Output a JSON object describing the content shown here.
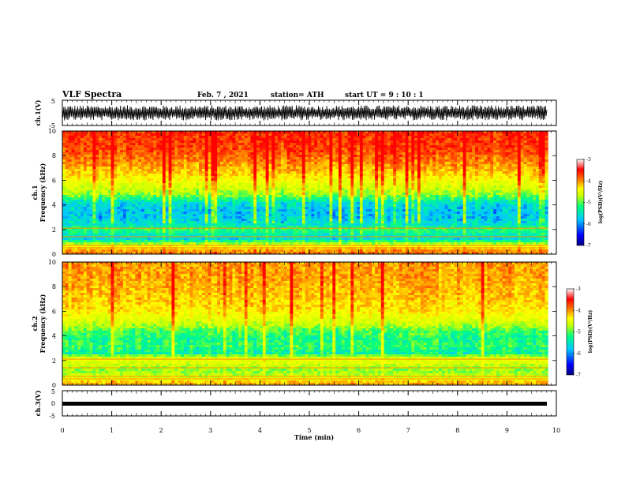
{
  "header": {
    "title": "VLF Spectra",
    "date": "Feb. 7  , 2021",
    "station": "station= ATH",
    "start_ut": "start  UT  =   9  : 10 : 1"
  },
  "chart_data": [
    {
      "type": "line",
      "panel": "ch1-waveform",
      "ylabel": "ch.1(V)",
      "ylim": [
        -5,
        5
      ],
      "yticks": [
        "5",
        "-5"
      ],
      "xlim": [
        0,
        10
      ],
      "trace": "dense noise waveform, amplitude about ±3 V",
      "color": "#000000"
    },
    {
      "type": "heatmap",
      "panel": "ch1-spectrogram",
      "ylabel_line1": "ch.1",
      "ylabel_line2": "Frequency  (kHz)",
      "ylim": [
        0,
        10
      ],
      "yticks": [
        "0",
        "2",
        "4",
        "6",
        "8",
        "10"
      ],
      "xlim": [
        0,
        9.83
      ],
      "band_profile_log_psd": [
        {
          "f": 0.2,
          "v": -3.6
        },
        {
          "f": 0.7,
          "v": -4.4
        },
        {
          "f": 1.2,
          "v": -5.7
        },
        {
          "f": 1.6,
          "v": -5.5
        },
        {
          "f": 2.0,
          "v": -5.2
        },
        {
          "f": 2.4,
          "v": -5.6
        },
        {
          "f": 3.0,
          "v": -5.8
        },
        {
          "f": 3.6,
          "v": -5.8
        },
        {
          "f": 4.2,
          "v": -5.6
        },
        {
          "f": 4.8,
          "v": -4.9
        },
        {
          "f": 5.5,
          "v": -4.5
        },
        {
          "f": 6.5,
          "v": -4.0
        },
        {
          "f": 7.5,
          "v": -3.6
        },
        {
          "f": 8.5,
          "v": -3.3
        },
        {
          "f": 9.5,
          "v": -3.2
        }
      ],
      "colorbar": {
        "label": "log(PSD)(V²/Hz)",
        "range": [
          -7,
          -3
        ],
        "ticks": [
          "-3",
          "-4",
          "-5",
          "-6",
          "-7"
        ]
      }
    },
    {
      "type": "heatmap",
      "panel": "ch2-spectrogram",
      "ylabel_line1": "ch.2",
      "ylabel_line2": "Frequency  (kHz)",
      "ylim": [
        0,
        10
      ],
      "yticks": [
        "0",
        "2",
        "4",
        "6",
        "8",
        "10"
      ],
      "xlim": [
        0,
        9.83
      ],
      "band_profile_log_psd": [
        {
          "f": 0.2,
          "v": -3.8
        },
        {
          "f": 0.7,
          "v": -4.6
        },
        {
          "f": 1.2,
          "v": -4.9
        },
        {
          "f": 1.7,
          "v": -4.6
        },
        {
          "f": 2.1,
          "v": -4.3
        },
        {
          "f": 2.6,
          "v": -5.4
        },
        {
          "f": 3.2,
          "v": -5.2
        },
        {
          "f": 3.8,
          "v": -5.3
        },
        {
          "f": 4.4,
          "v": -5.1
        },
        {
          "f": 5.0,
          "v": -4.6
        },
        {
          "f": 6.0,
          "v": -4.1
        },
        {
          "f": 7.0,
          "v": -3.9
        },
        {
          "f": 8.0,
          "v": -3.8
        },
        {
          "f": 9.0,
          "v": -3.7
        },
        {
          "f": 9.8,
          "v": -3.7
        }
      ],
      "colorbar": {
        "label": "log(PSD)(V²/Hz)",
        "range": [
          -7,
          -3
        ],
        "ticks": [
          "-3",
          "-4",
          "-5",
          "-6",
          "-7"
        ]
      }
    },
    {
      "type": "line",
      "panel": "ch3-waveform",
      "ylabel": "ch.3(V)",
      "ylim": [
        -5,
        5
      ],
      "yticks": [
        "5",
        "0",
        "-5"
      ],
      "xlim": [
        0,
        10
      ],
      "trace": "constant level near 0 V",
      "color": "#000000"
    }
  ],
  "xaxis": {
    "label": "Time  (min)",
    "range": [
      0,
      10
    ],
    "ticks": [
      "0",
      "1",
      "2",
      "3",
      "4",
      "5",
      "6",
      "7",
      "8",
      "9",
      "10"
    ]
  },
  "colormap": [
    "#000080",
    "#0000ff",
    "#00c8ff",
    "#00ff80",
    "#c8ff00",
    "#ffff00",
    "#ff8000",
    "#ff0000",
    "#ffffff"
  ]
}
